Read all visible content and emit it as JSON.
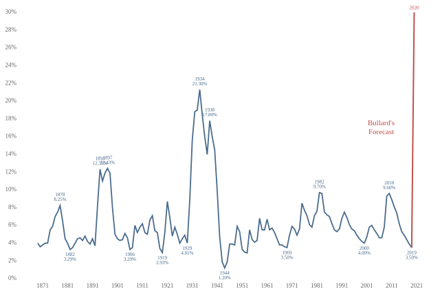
{
  "chart_data": {
    "type": "line",
    "x": [
      1869,
      1870,
      1871,
      1872,
      1873,
      1874,
      1875,
      1876,
      1877,
      1878,
      1879,
      1880,
      1881,
      1882,
      1883,
      1884,
      1885,
      1886,
      1887,
      1888,
      1889,
      1890,
      1891,
      1892,
      1893,
      1894,
      1895,
      1896,
      1897,
      1898,
      1899,
      1900,
      1901,
      1902,
      1903,
      1904,
      1905,
      1906,
      1907,
      1908,
      1909,
      1910,
      1911,
      1912,
      1913,
      1914,
      1915,
      1916,
      1917,
      1918,
      1919,
      1920,
      1921,
      1922,
      1923,
      1924,
      1925,
      1926,
      1927,
      1928,
      1929,
      1930,
      1931,
      1932,
      1933,
      1934,
      1935,
      1936,
      1937,
      1938,
      1939,
      1940,
      1941,
      1942,
      1943,
      1944,
      1945,
      1946,
      1947,
      1948,
      1949,
      1950,
      1951,
      1952,
      1953,
      1954,
      1955,
      1956,
      1957,
      1958,
      1959,
      1960,
      1961,
      1962,
      1963,
      1964,
      1965,
      1966,
      1967,
      1968,
      1969,
      1970,
      1971,
      1972,
      1973,
      1974,
      1975,
      1976,
      1977,
      1978,
      1979,
      1980,
      1981,
      1982,
      1983,
      1984,
      1985,
      1986,
      1987,
      1988,
      1989,
      1990,
      1991,
      1992,
      1993,
      1994,
      1995,
      1996,
      1997,
      1998,
      1999,
      2000,
      2001,
      2002,
      2003,
      2004,
      2005,
      2006,
      2007,
      2008,
      2009,
      2010,
      2011,
      2012,
      2013,
      2014,
      2015,
      2016,
      2017,
      2018,
      2019
    ],
    "series": [
      {
        "color": "#4a6b8c",
        "values": [
          4.0,
          3.6,
          3.8,
          4.0,
          4.0,
          5.5,
          5.9,
          7.0,
          7.5,
          8.25,
          6.5,
          4.5,
          4.0,
          3.29,
          3.5,
          4.0,
          4.5,
          4.6,
          4.3,
          4.8,
          4.2,
          3.9,
          4.5,
          3.7,
          8.2,
          12.33,
          11.0,
          11.9,
          12.43,
          11.9,
          8.0,
          5.0,
          4.5,
          4.3,
          4.4,
          5.1,
          4.6,
          3.29,
          3.5,
          6.0,
          5.2,
          5.8,
          6.2,
          5.2,
          5.0,
          6.6,
          7.1,
          5.4,
          5.2,
          3.4,
          2.93,
          5.2,
          8.7,
          6.9,
          4.8,
          5.8,
          5.0,
          4.0,
          4.5,
          4.9,
          4.01,
          8.9,
          15.6,
          18.8,
          19.0,
          21.3,
          18.5,
          16.0,
          14.0,
          17.8,
          16.0,
          14.5,
          9.9,
          4.7,
          1.9,
          1.2,
          1.9,
          3.9,
          3.9,
          3.8,
          5.9,
          5.3,
          3.3,
          3.0,
          2.9,
          5.5,
          4.4,
          4.1,
          4.3,
          6.8,
          5.5,
          5.5,
          6.7,
          5.5,
          5.7,
          5.2,
          4.5,
          3.8,
          3.8,
          3.6,
          3.5,
          4.9,
          5.9,
          5.6,
          4.9,
          5.6,
          8.5,
          7.7,
          7.1,
          6.1,
          5.8,
          7.1,
          7.6,
          9.7,
          9.6,
          7.5,
          7.2,
          7.0,
          6.2,
          5.5,
          5.3,
          5.6,
          6.8,
          7.5,
          6.9,
          6.1,
          5.6,
          5.4,
          4.9,
          4.5,
          4.2,
          4.0,
          4.7,
          5.8,
          6.0,
          5.5,
          5.1,
          4.6,
          4.6,
          5.8,
          9.3,
          9.6,
          8.9,
          8.1,
          7.4,
          6.2,
          5.3,
          4.9,
          4.4,
          3.9,
          3.5
        ]
      },
      {
        "name": "Bullard's Forecast",
        "color": "#c0504d",
        "x": [
          2019,
          2020
        ],
        "values": [
          3.5,
          30
        ]
      }
    ],
    "annotations": [
      {
        "year": 1878,
        "value": 8.25,
        "value_label": "8.25%"
      },
      {
        "year": 1882,
        "value": 3.29,
        "value_label": "3.29%"
      },
      {
        "year": 1894,
        "value": 12.33,
        "value_label": "12.33%"
      },
      {
        "year": 1897,
        "value": 12.43,
        "value_label": "12.43%"
      },
      {
        "year": 1906,
        "value": 3.29,
        "value_label": "3.29%"
      },
      {
        "year": 1919,
        "value": 2.93,
        "value_label": "2.93%"
      },
      {
        "year": 1929,
        "value": 4.01,
        "value_label": "4.01%"
      },
      {
        "year": 1934,
        "value": 21.3,
        "value_label": "21.30%"
      },
      {
        "year": 1938,
        "value": 17.8,
        "value_label": "17.80%"
      },
      {
        "year": 1944,
        "value": 1.2,
        "value_label": "1.20%"
      },
      {
        "year": 1969,
        "value": 3.5,
        "value_label": "3.50%"
      },
      {
        "year": 1982,
        "value": 9.7,
        "value_label": "9.70%"
      },
      {
        "year": 2000,
        "value": 4.0,
        "value_label": "4.00%"
      },
      {
        "year": 2010,
        "value": 9.6,
        "value_label": "9.60%"
      },
      {
        "year": 2019,
        "value": 3.5,
        "value_label": "3.50%"
      },
      {
        "year": 2020,
        "value": 30
      }
    ],
    "xlim": [
      1866,
      2025
    ],
    "xticks": [
      1871,
      1881,
      1891,
      1901,
      1911,
      1921,
      1931,
      1941,
      1951,
      1961,
      1971,
      1981,
      1991,
      2001,
      2011,
      2021
    ],
    "ylim": [
      0,
      30
    ],
    "yticks": [
      {
        "value": 0,
        "label": "0%"
      },
      {
        "value": 2,
        "label": "2%"
      },
      {
        "value": 4,
        "label": "4%"
      },
      {
        "value": 6,
        "label": "6%"
      },
      {
        "value": 8,
        "label": "8%"
      },
      {
        "value": 10,
        "label": "10%"
      },
      {
        "value": 12,
        "label": "12%"
      },
      {
        "value": 14,
        "label": "14%"
      },
      {
        "value": 16,
        "label": "16%"
      },
      {
        "value": 18,
        "label": "18%"
      },
      {
        "value": 20,
        "label": "20%"
      },
      {
        "value": 22,
        "label": "22%"
      },
      {
        "value": 24,
        "label": "24%"
      },
      {
        "value": 26,
        "label": "26%"
      },
      {
        "value": 28,
        "label": "28%"
      },
      {
        "value": 30,
        "label": "30%"
      }
    ],
    "grid": false
  }
}
